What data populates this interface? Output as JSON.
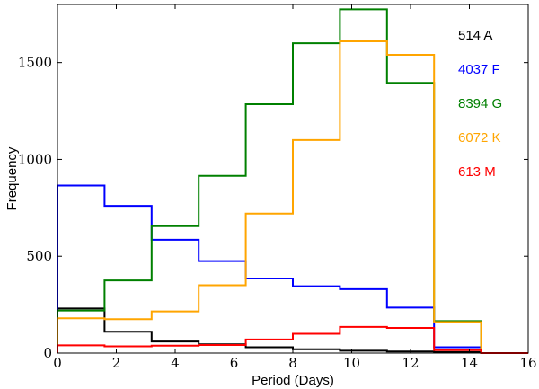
{
  "chart_data": {
    "type": "histogram",
    "title": "",
    "xlabel": "Period (Days)",
    "ylabel": "Frequency",
    "xlim": [
      0,
      16
    ],
    "ylim": [
      0,
      1800
    ],
    "xticks": [
      0,
      2,
      4,
      6,
      8,
      10,
      12,
      14,
      16
    ],
    "yticks": [
      0,
      500,
      1000,
      1500
    ],
    "grid": false,
    "legend_position": "top-right",
    "bin_edges": [
      0,
      1.6,
      3.2,
      4.8,
      6.4,
      8.0,
      9.6,
      11.2,
      12.8,
      14.4,
      16
    ],
    "series": [
      {
        "name": "514 A",
        "color": "#000000",
        "values": [
          230,
          110,
          60,
          45,
          30,
          20,
          12,
          8,
          5,
          0
        ]
      },
      {
        "name": "4037 F",
        "color": "#0000ff",
        "values": [
          865,
          760,
          585,
          475,
          385,
          345,
          330,
          235,
          30,
          0
        ]
      },
      {
        "name": "8394 G",
        "color": "#008000",
        "values": [
          220,
          375,
          655,
          915,
          1285,
          1600,
          1775,
          1395,
          165,
          0
        ]
      },
      {
        "name": "6072 K",
        "color": "#ffa500",
        "values": [
          180,
          175,
          215,
          350,
          720,
          1100,
          1610,
          1540,
          160,
          0
        ]
      },
      {
        "name": "613 M",
        "color": "#ff0000",
        "values": [
          40,
          35,
          38,
          42,
          70,
          100,
          135,
          130,
          15,
          0
        ]
      }
    ]
  }
}
